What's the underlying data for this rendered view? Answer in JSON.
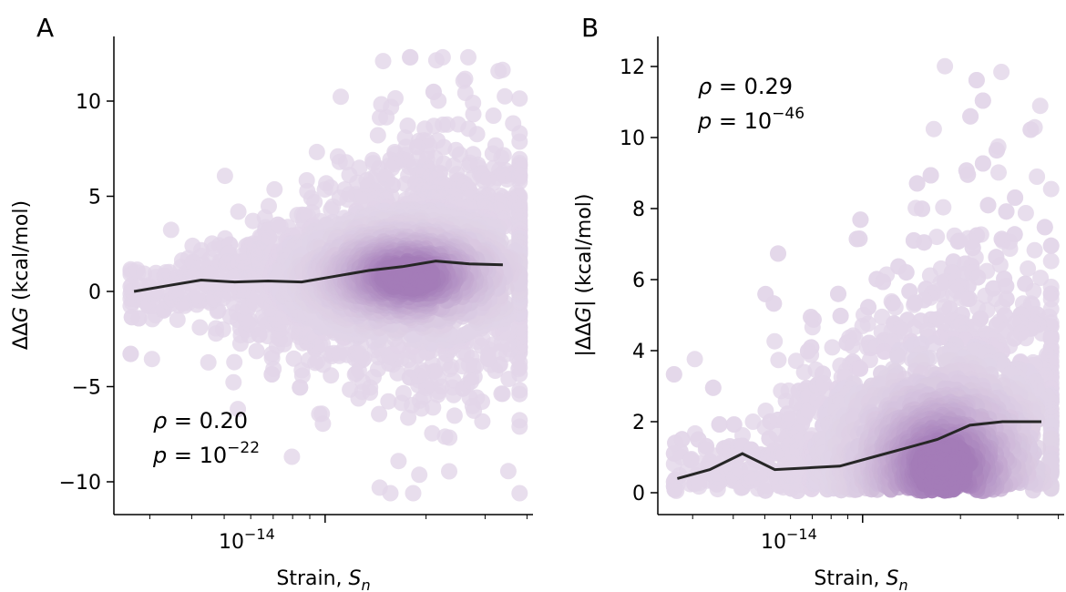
{
  "chart_data": [
    {
      "type": "scatter",
      "panel_label": "A",
      "xlabel": "Strain, ",
      "xlabel_sub": "S",
      "xlabel_subscript": "n",
      "ylabel_prefix": "ΔΔ",
      "ylabel_var": "G",
      "ylabel_suffix": " (kcal/mol)",
      "x_scale": "log",
      "x_range_log10": [
        -14.63,
        -13.38
      ],
      "x_major_tick": {
        "value": "1e-14",
        "base": "10",
        "exponent": "−14"
      },
      "y_range": [
        -11.8,
        13.5
      ],
      "y_ticks": [
        {
          "value": 10,
          "label": "10"
        },
        {
          "value": 5,
          "label": "5"
        },
        {
          "value": 0,
          "label": "0"
        },
        {
          "value": -5,
          "label": "−5"
        },
        {
          "value": -10,
          "label": "−10"
        }
      ],
      "annotation": {
        "rho_symbol": "ρ",
        "rho_text": " = 0.20",
        "p_symbol": "p",
        "p_text": " = 10",
        "p_exponent": "−22"
      },
      "trend_line": {
        "log10_x": [
          -14.57,
          -14.47,
          -14.37,
          -14.27,
          -14.17,
          -14.07,
          -13.97,
          -13.87,
          -13.77,
          -13.67,
          -13.57,
          -13.47
        ],
        "y": [
          0.0,
          0.3,
          0.6,
          0.5,
          0.55,
          0.5,
          0.8,
          1.1,
          1.3,
          1.6,
          1.45,
          1.4
        ]
      },
      "point_color": "#c5aed2",
      "dense_color": "#8f5ea8"
    },
    {
      "type": "scatter",
      "panel_label": "B",
      "xlabel": "Strain, ",
      "xlabel_sub": "S",
      "xlabel_subscript": "n",
      "ylabel_prefix": "|ΔΔ",
      "ylabel_var": "G",
      "ylabel_suffix": "| (kcal/mol)",
      "x_scale": "log",
      "x_range_log10": [
        -14.63,
        -13.38
      ],
      "x_major_tick": {
        "value": "1e-14",
        "base": "10",
        "exponent": "−14"
      },
      "y_range": [
        -0.6,
        12.8
      ],
      "y_ticks": [
        {
          "value": 12,
          "label": "12"
        },
        {
          "value": 10,
          "label": "10"
        },
        {
          "value": 8,
          "label": "8"
        },
        {
          "value": 6,
          "label": "6"
        },
        {
          "value": 4,
          "label": "4"
        },
        {
          "value": 2,
          "label": "2"
        },
        {
          "value": 0,
          "label": "0"
        }
      ],
      "annotation": {
        "rho_symbol": "ρ",
        "rho_text": " = 0.29",
        "p_symbol": "p",
        "p_text": " = 10",
        "p_exponent": "−46"
      },
      "trend_line": {
        "log10_x": [
          -14.57,
          -14.47,
          -14.37,
          -14.27,
          -14.17,
          -14.07,
          -13.97,
          -13.87,
          -13.77,
          -13.67,
          -13.57,
          -13.45
        ],
        "y": [
          0.4,
          0.65,
          1.1,
          0.65,
          0.7,
          0.75,
          1.0,
          1.25,
          1.5,
          1.9,
          2.0,
          2.0
        ]
      },
      "point_color": "#c5aed2",
      "dense_color": "#8f5ea8"
    }
  ]
}
